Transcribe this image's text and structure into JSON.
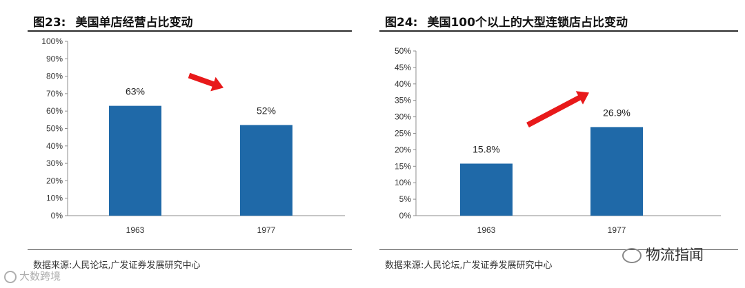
{
  "figures": [
    {
      "id": "fig23",
      "number": "图23:",
      "title": "美国单店经营占比变动",
      "source": "数据来源:人民论坛,广发证券发展研究中心"
    },
    {
      "id": "fig24",
      "number": "图24:",
      "title": "美国100个以上的大型连锁店占比变动",
      "source": "数据来源:人民论坛,广发证券发展研究中心"
    }
  ],
  "chart_data": [
    {
      "type": "bar",
      "title": "美国单店经营占比变动",
      "categories": [
        "1963",
        "1977"
      ],
      "values": [
        63,
        52
      ],
      "data_labels": [
        "63%",
        "52%"
      ],
      "ylim": [
        0,
        100
      ],
      "yticks": [
        "0%",
        "10%",
        "20%",
        "30%",
        "40%",
        "50%",
        "60%",
        "70%",
        "80%",
        "90%",
        "100%"
      ],
      "ytick_values": [
        0,
        10,
        20,
        30,
        40,
        50,
        60,
        70,
        80,
        90,
        100
      ],
      "bar_color": "#1f69a8",
      "arrow_color": "#e8191a",
      "arrow_direction": "down",
      "grid": false,
      "legend": false
    },
    {
      "type": "bar",
      "title": "美国100个以上的大型连锁店占比变动",
      "categories": [
        "1963",
        "1977"
      ],
      "values": [
        15.8,
        26.9
      ],
      "data_labels": [
        "15.8%",
        "26.9%"
      ],
      "ylim": [
        0,
        50
      ],
      "yticks": [
        "0%",
        "5%",
        "10%",
        "15%",
        "20%",
        "25%",
        "30%",
        "35%",
        "40%",
        "45%",
        "50%"
      ],
      "ytick_values": [
        0,
        5,
        10,
        15,
        20,
        25,
        30,
        35,
        40,
        45,
        50
      ],
      "bar_color": "#1f69a8",
      "arrow_color": "#e8191a",
      "arrow_direction": "up",
      "grid": false,
      "legend": false
    }
  ],
  "watermarks": {
    "left": "大数跨境",
    "right": "物流指闻"
  }
}
